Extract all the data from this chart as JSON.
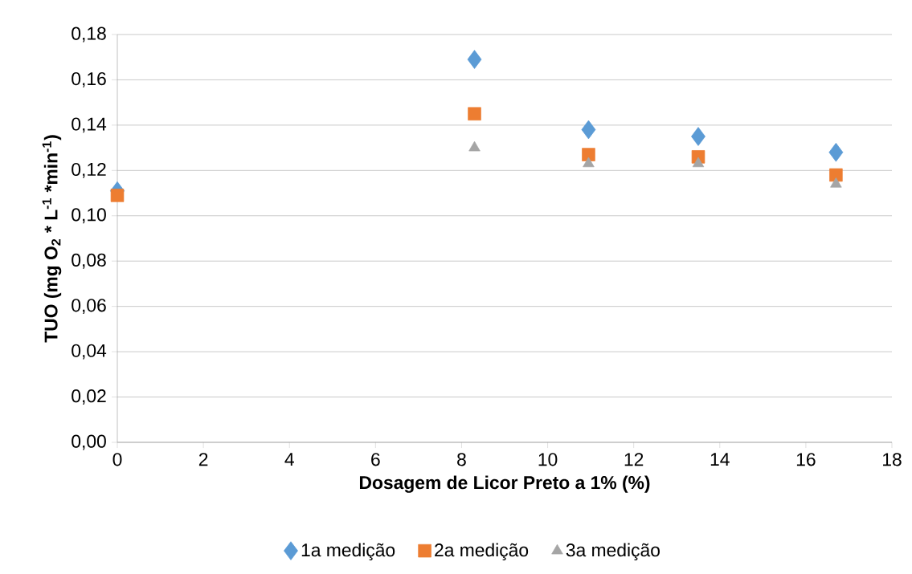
{
  "chart_data": {
    "type": "scatter",
    "xlabel": "Dosagem de Licor Preto a 1% (%)",
    "ylabel": "**TUO (mg O$_{2}$ * L$^{-1}$ *min$^{-1}$)**",
    "x": [
      0,
      8.3,
      10.95,
      13.5,
      16.7
    ],
    "series": [
      {
        "name": "1a medição",
        "color": "#5b9bd5",
        "marker": "diamond",
        "values": [
          0.111,
          0.169,
          0.138,
          0.135,
          0.128
        ]
      },
      {
        "name": "2a medição",
        "color": "#ed7d31",
        "marker": "square",
        "values": [
          0.109,
          0.145,
          0.127,
          0.126,
          0.118
        ]
      },
      {
        "name": "3a medição",
        "color": "#a5a5a5",
        "marker": "triangle",
        "values": [
          null,
          0.13,
          0.123,
          0.123,
          0.114
        ]
      }
    ],
    "xlim": [
      0,
      18
    ],
    "xticks": [
      0,
      2,
      4,
      6,
      8,
      10,
      12,
      14,
      16,
      18
    ],
    "ylim": [
      0,
      0.18
    ],
    "yticks": [
      {
        "value": 0,
        "label": "0,00"
      },
      {
        "value": 0.02,
        "label": "0,02"
      },
      {
        "value": 0.04,
        "label": "0,04"
      },
      {
        "value": 0.06,
        "label": "0,06"
      },
      {
        "value": 0.08,
        "label": "0,08"
      },
      {
        "value": 0.1,
        "label": "0,10"
      },
      {
        "value": 0.12,
        "label": "0,12"
      },
      {
        "value": 0.14,
        "label": "0,14"
      },
      {
        "value": 0.16,
        "label": "0,16"
      },
      {
        "value": 0.18,
        "label": "0,18"
      }
    ],
    "grid": "y",
    "legend": "bottom"
  }
}
